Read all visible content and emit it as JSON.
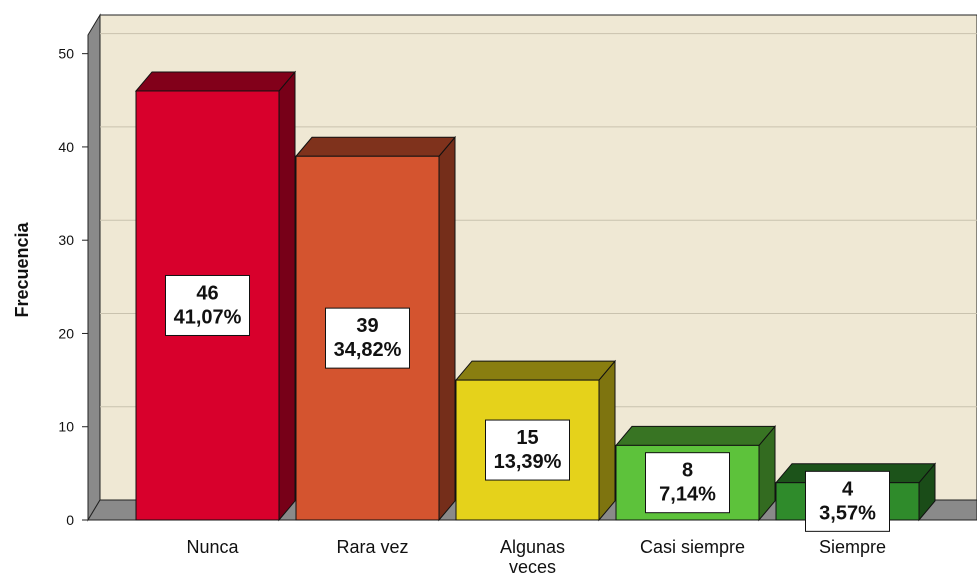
{
  "chart_data": {
    "type": "bar3d",
    "y_label": "Frecuencia",
    "categories": [
      "Nunca",
      "Rara vez",
      "Algunas veces",
      "Casi siempre",
      "Siempre"
    ],
    "values": [
      46,
      39,
      15,
      8,
      4
    ],
    "percent_labels": [
      "41,07%",
      "34,82%",
      "13,39%",
      "7,14%",
      "3,57%"
    ],
    "colors": [
      "#d8002c",
      "#d4542f",
      "#e5d21b",
      "#5dc23b",
      "#2f8b2b"
    ],
    "ylim": [
      0,
      52
    ],
    "yticks": [
      0,
      10,
      20,
      30,
      40,
      50
    ],
    "grid": true
  }
}
